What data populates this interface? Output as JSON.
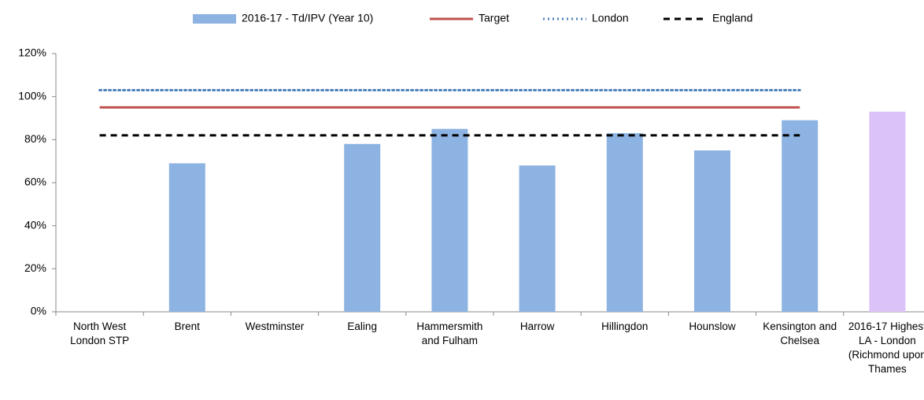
{
  "chart_data": {
    "type": "bar",
    "categories": [
      "North West London STP",
      "Brent",
      "Westminster",
      "Ealing",
      "Hammersmith and Fulham",
      "Harrow",
      "Hillingdon",
      "Hounslow",
      "Kensington and Chelsea",
      "2016-17 Highest LA - London (Richmond upon Thames"
    ],
    "series": [
      {
        "name": "2016-17 - Td/IPV (Year 10)",
        "type": "bar",
        "color": "#8db3e2",
        "colors": [
          "#8db3e2",
          "#8db3e2",
          "#8db3e2",
          "#8db3e2",
          "#8db3e2",
          "#8db3e2",
          "#8db3e2",
          "#8db3e2",
          "#8db3e2",
          "#dcc3f7"
        ],
        "values": [
          null,
          69,
          null,
          78,
          85,
          68,
          83,
          75,
          89,
          93
        ]
      },
      {
        "name": "Target",
        "type": "line",
        "color": "#c0504d",
        "style": "solid",
        "values": [
          95,
          95,
          95,
          95,
          95,
          95,
          95,
          95,
          95,
          null
        ]
      },
      {
        "name": "London",
        "type": "line",
        "color": "#4f81bd",
        "style": "dotted",
        "values": [
          103,
          103,
          103,
          103,
          103,
          103,
          103,
          103,
          103,
          null
        ]
      },
      {
        "name": "England",
        "type": "line",
        "color": "#000000",
        "style": "dashed",
        "values": [
          82,
          82,
          82,
          82,
          82,
          82,
          82,
          82,
          82,
          null
        ]
      }
    ],
    "ylim": [
      0,
      120
    ],
    "yticks": [
      {
        "value": 0,
        "label": "0%"
      },
      {
        "value": 20,
        "label": "20%"
      },
      {
        "value": 40,
        "label": "40%"
      },
      {
        "value": 60,
        "label": "60%"
      },
      {
        "value": 80,
        "label": "80%"
      },
      {
        "value": 100,
        "label": "100%"
      },
      {
        "value": 120,
        "label": "120%"
      }
    ],
    "legend": "top"
  }
}
